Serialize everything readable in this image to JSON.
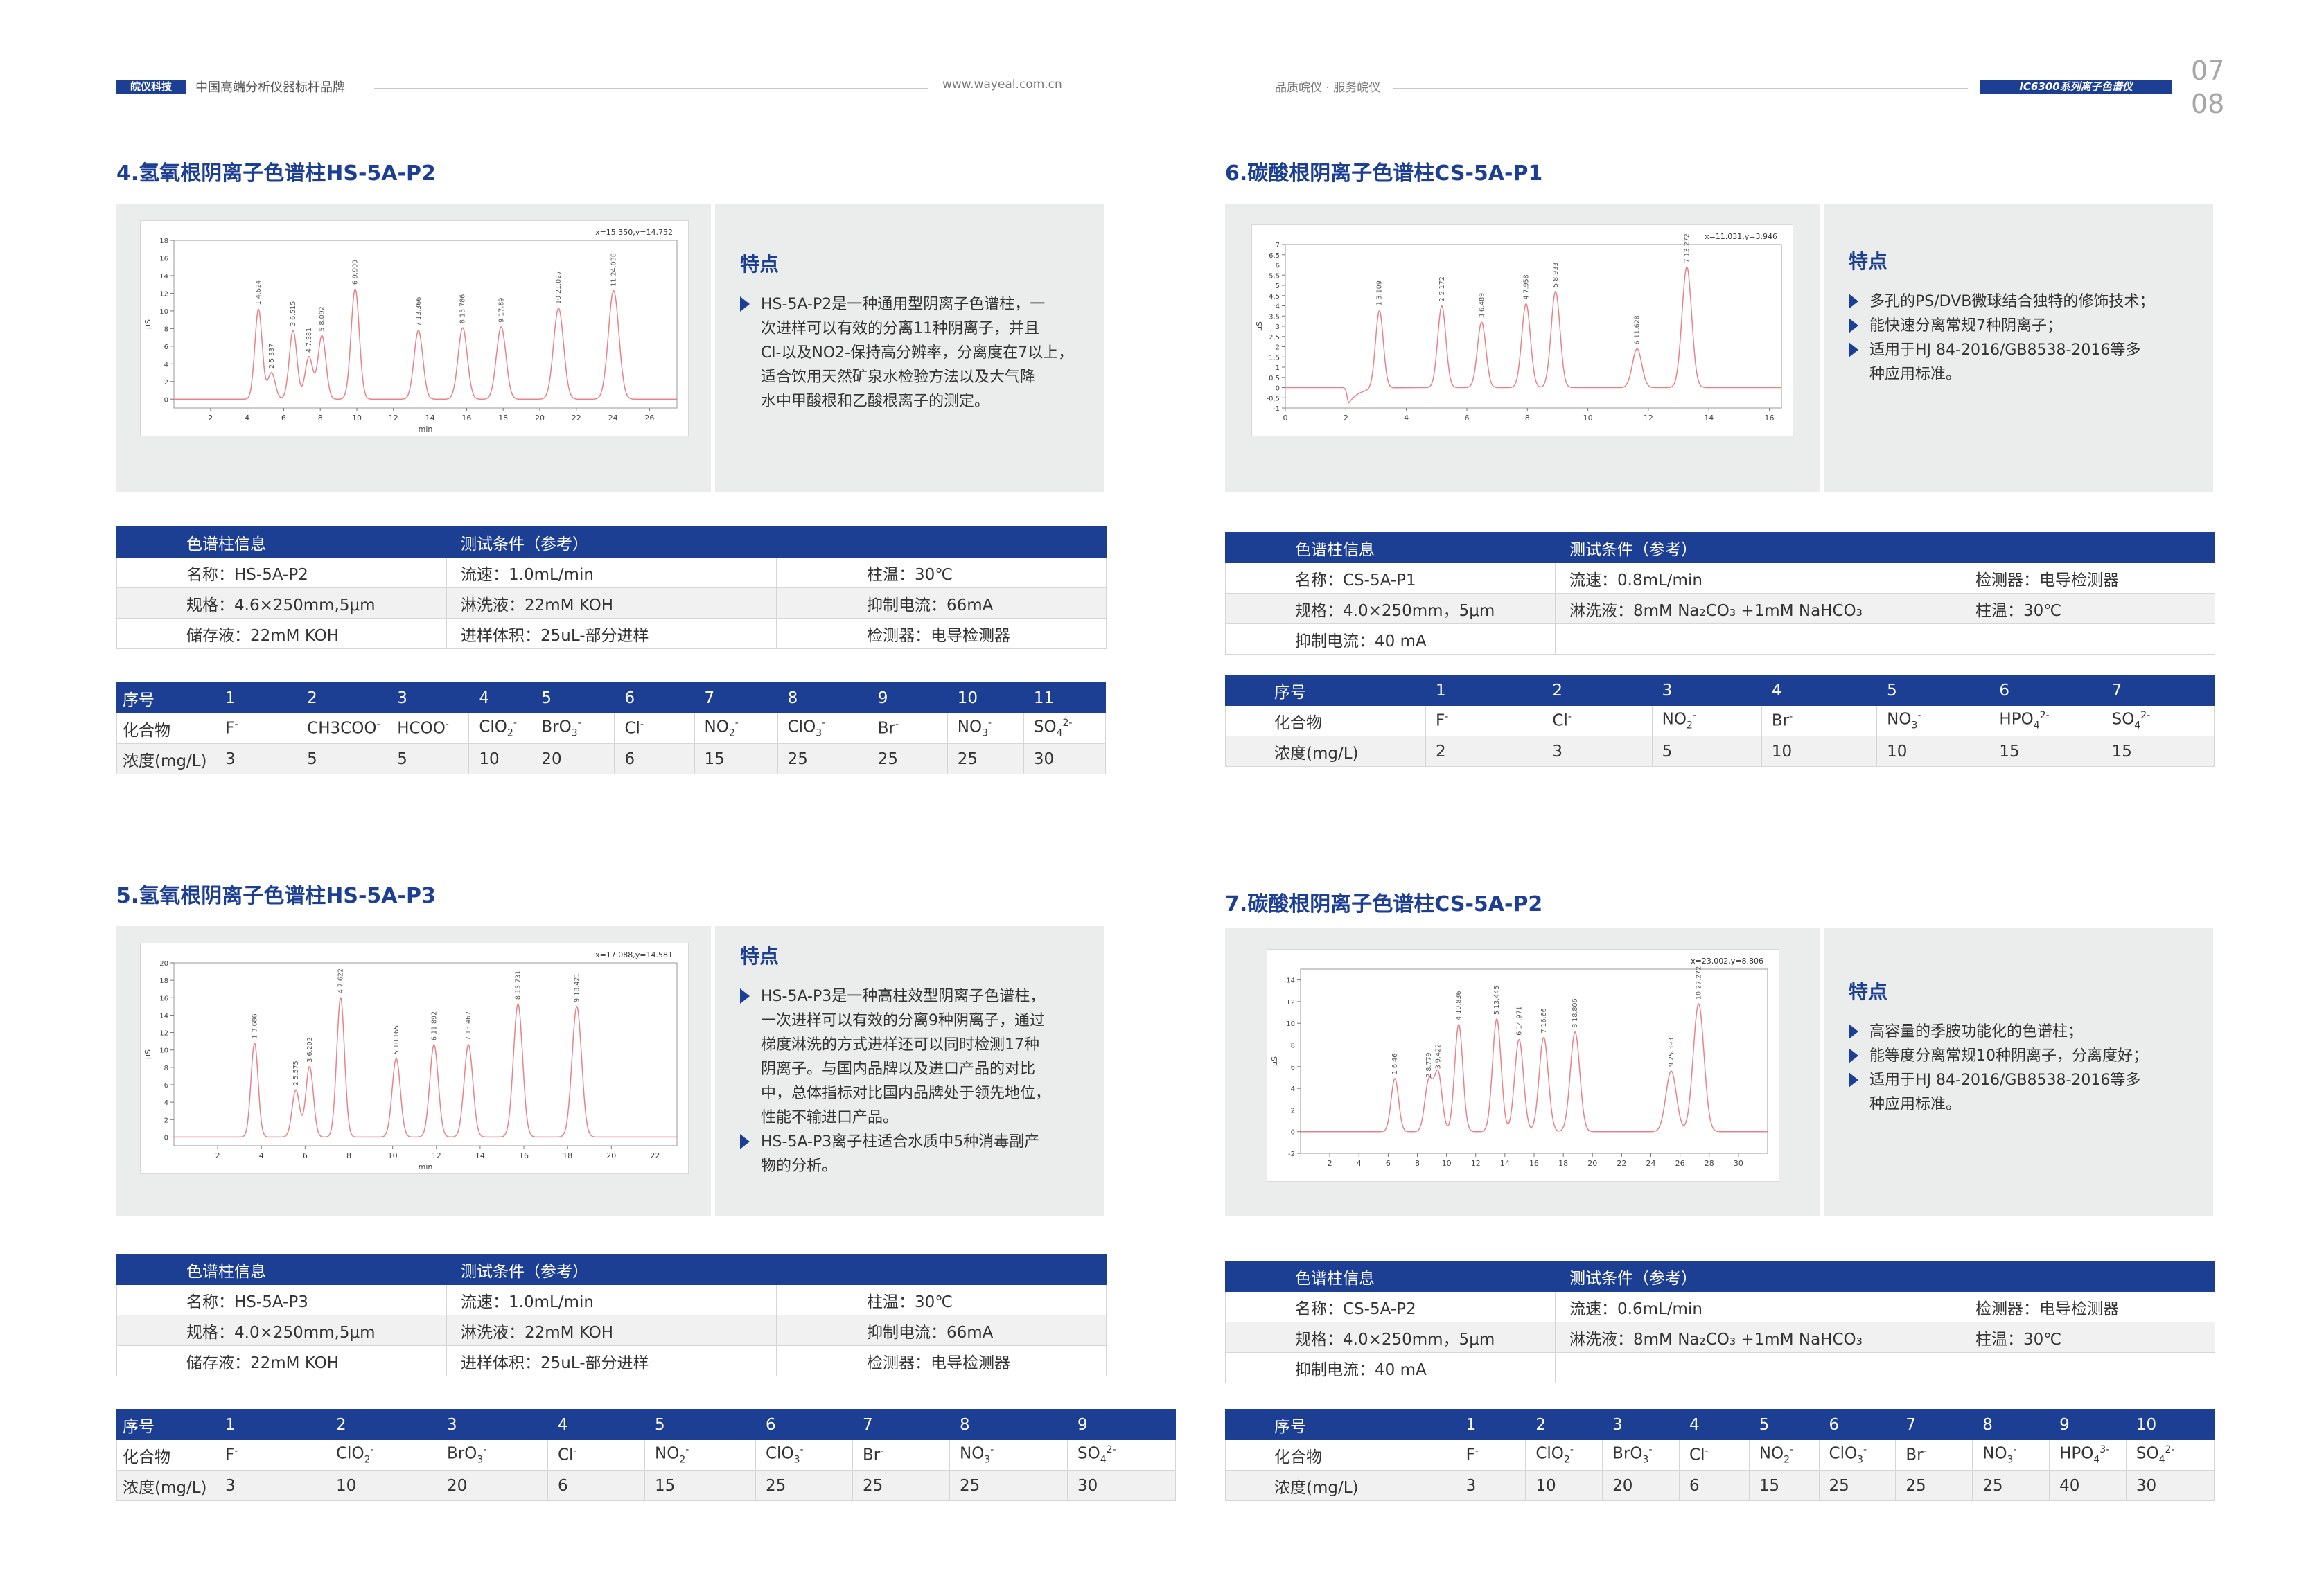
{
  "header": {
    "brand_badge": "皖仪科技",
    "slogan": "中国高端分析仪器标杆品牌",
    "url": "www.wayeal.com.cn",
    "right_slogan": "品质皖仪 · 服务皖仪",
    "series_badge": "IC6300系列离子色谱仪",
    "page_left": "07",
    "page_right": "08"
  },
  "colors": {
    "accent": "#1c3f94",
    "panel": "#ebecec",
    "trace": "#e8838a"
  },
  "sections": [
    {
      "title": "4.氢氧根阴离子色谱柱HS-5A-P2",
      "feature_heading": "特点",
      "features": [
        "HS-5A-P2是一种通用型阴离子色谱柱，一\n次进样可以有效的分离11种阴离子，并且\nCl-以及NO2-保持高分辨率，分离度在7以上，\n适合饮用天然矿泉水检验方法以及大气降\n水中甲酸根和乙酸根离子的测定。"
      ],
      "info_headers": [
        "色谱柱信息",
        "测试条件（参考）"
      ],
      "info_rows": [
        [
          "名称：HS-5A-P2",
          "流速：1.0mL/min",
          "柱温：30℃"
        ],
        [
          "规格：4.6×250mm,5μm",
          "淋洗液：22mM KOH",
          "抑制电流：66mA"
        ],
        [
          "储存液：22mM KOH",
          "进样体积：25uL-部分进样",
          "检测器：电导检测器"
        ]
      ],
      "compound_labels": [
        "序号",
        "化合物",
        "浓度(mg/L)"
      ],
      "compounds": [
        {
          "n": "1",
          "name": "F",
          "sup": "-",
          "sub": "",
          "conc": "3"
        },
        {
          "n": "2",
          "name": "CH3COO",
          "sup": "-",
          "sub": "",
          "conc": "5"
        },
        {
          "n": "3",
          "name": "HCOO",
          "sup": "-",
          "sub": "",
          "conc": "5"
        },
        {
          "n": "4",
          "name": "ClO",
          "sub": "2",
          "sup": "-",
          "conc": "10"
        },
        {
          "n": "5",
          "name": "BrO",
          "sub": "3",
          "sup": "-",
          "conc": "20"
        },
        {
          "n": "6",
          "name": "Cl",
          "sup": "-",
          "sub": "",
          "conc": "6"
        },
        {
          "n": "7",
          "name": "NO",
          "sub": "2",
          "sup": "-",
          "conc": "15"
        },
        {
          "n": "8",
          "name": "ClO",
          "sub": "3",
          "sup": "-",
          "conc": "25"
        },
        {
          "n": "9",
          "name": "Br",
          "sup": "-",
          "sub": "",
          "conc": "25"
        },
        {
          "n": "10",
          "name": "NO",
          "sub": "3",
          "sup": "-",
          "conc": "25"
        },
        {
          "n": "11",
          "name": "SO",
          "sub": "4",
          "sup": "2-",
          "conc": "30"
        }
      ]
    },
    {
      "title": "5.氢氧根阴离子色谱柱HS-5A-P3",
      "feature_heading": "特点",
      "features": [
        "HS-5A-P3是一种高柱效型阴离子色谱柱，\n一次进样可以有效的分离9种阴离子，通过\n梯度淋洗的方式进样还可以同时检测17种\n阴离子。与国内品牌以及进口产品的对比\n中，总体指标对比国内品牌处于领先地位，\n性能不输进口产品。",
        "HS-5A-P3离子柱适合水质中5种消毒副产\n物的分析。"
      ],
      "info_headers": [
        "色谱柱信息",
        "测试条件（参考）"
      ],
      "info_rows": [
        [
          "名称：HS-5A-P3",
          "流速：1.0mL/min",
          "柱温：30℃"
        ],
        [
          "规格：4.0×250mm,5μm",
          "淋洗液：22mM KOH",
          "抑制电流：66mA"
        ],
        [
          "储存液：22mM KOH",
          "进样体积：25uL-部分进样",
          "检测器：电导检测器"
        ]
      ],
      "compound_labels": [
        "序号",
        "化合物",
        "浓度(mg/L)"
      ],
      "compounds": [
        {
          "n": "1",
          "name": "F",
          "sup": "-",
          "sub": "",
          "conc": "3"
        },
        {
          "n": "2",
          "name": "ClO",
          "sub": "2",
          "sup": "-",
          "conc": "10"
        },
        {
          "n": "3",
          "name": "BrO",
          "sub": "3",
          "sup": "-",
          "conc": "20"
        },
        {
          "n": "4",
          "name": "Cl",
          "sup": "-",
          "sub": "",
          "conc": "6"
        },
        {
          "n": "5",
          "name": "NO",
          "sub": "2",
          "sup": "-",
          "conc": "15"
        },
        {
          "n": "6",
          "name": "ClO",
          "sub": "3",
          "sup": "-",
          "conc": "25"
        },
        {
          "n": "7",
          "name": "Br",
          "sup": "-",
          "sub": "",
          "conc": "25"
        },
        {
          "n": "8",
          "name": "NO",
          "sub": "3",
          "sup": "-",
          "conc": "25"
        },
        {
          "n": "9",
          "name": "SO",
          "sub": "4",
          "sup": "2-",
          "conc": "30"
        }
      ]
    },
    {
      "title": "6.碳酸根阴离子色谱柱CS-5A-P1",
      "feature_heading": "特点",
      "features": [
        "多孔的PS/DVB微球结合独特的修饰技术；",
        "能快速分离常规7种阴离子；",
        "适用于HJ 84-2016/GB8538-2016等多\n种应用标准。"
      ],
      "info_headers": [
        "色谱柱信息",
        "测试条件（参考）"
      ],
      "info_rows": [
        [
          "名称：CS-5A-P1",
          "流速：0.8mL/min",
          "检测器：电导检测器"
        ],
        [
          "规格：4.0×250mm，5μm",
          "淋洗液：8mM Na₂CO₃ +1mM NaHCO₃",
          "柱温：30℃"
        ],
        [
          "抑制电流：40 mA",
          "",
          ""
        ]
      ],
      "compound_labels": [
        "序号",
        "化合物",
        "浓度(mg/L)"
      ],
      "compounds": [
        {
          "n": "1",
          "name": "F",
          "sup": "-",
          "sub": "",
          "conc": "2"
        },
        {
          "n": "2",
          "name": "Cl",
          "sup": "-",
          "sub": "",
          "conc": "3"
        },
        {
          "n": "3",
          "name": "NO",
          "sub": "2",
          "sup": "-",
          "conc": "5"
        },
        {
          "n": "4",
          "name": "Br",
          "sup": "-",
          "sub": "",
          "conc": "10"
        },
        {
          "n": "5",
          "name": "NO",
          "sub": "3",
          "sup": "-",
          "conc": "10"
        },
        {
          "n": "6",
          "name": "HPO",
          "sub": "4",
          "sup": "2-",
          "conc": "15"
        },
        {
          "n": "7",
          "name": "SO",
          "sub": "4",
          "sup": "2-",
          "conc": "15"
        }
      ]
    },
    {
      "title": "7.碳酸根阴离子色谱柱CS-5A-P2",
      "feature_heading": "特点",
      "features": [
        "高容量的季胺功能化的色谱柱；",
        "能等度分离常规10种阴离子，分离度好；",
        "适用于HJ 84-2016/GB8538-2016等多\n种应用标准。"
      ],
      "info_headers": [
        "色谱柱信息",
        "测试条件（参考）"
      ],
      "info_rows": [
        [
          "名称：CS-5A-P2",
          "流速：0.6mL/min",
          "检测器：电导检测器"
        ],
        [
          "规格：4.0×250mm，5μm",
          "淋洗液：8mM Na₂CO₃ +1mM NaHCO₃",
          "柱温：30℃"
        ],
        [
          "抑制电流：40 mA",
          "",
          ""
        ]
      ],
      "compound_labels": [
        "序号",
        "化合物",
        "浓度(mg/L)"
      ],
      "compounds": [
        {
          "n": "1",
          "name": "F",
          "sup": "-",
          "sub": "",
          "conc": "3"
        },
        {
          "n": "2",
          "name": "ClO",
          "sub": "2",
          "sup": "-",
          "conc": "10"
        },
        {
          "n": "3",
          "name": "BrO",
          "sub": "3",
          "sup": "-",
          "conc": "20"
        },
        {
          "n": "4",
          "name": "Cl",
          "sup": "-",
          "sub": "",
          "conc": "6"
        },
        {
          "n": "5",
          "name": "NO",
          "sub": "2",
          "sup": "-",
          "conc": "15"
        },
        {
          "n": "6",
          "name": "ClO",
          "sub": "3",
          "sup": "-",
          "conc": "25"
        },
        {
          "n": "7",
          "name": "Br",
          "sup": "-",
          "sub": "",
          "conc": "25"
        },
        {
          "n": "8",
          "name": "NO",
          "sub": "3",
          "sup": "-",
          "conc": "25"
        },
        {
          "n": "9",
          "name": "HPO",
          "sub": "4",
          "sup": "3-",
          "conc": "40"
        },
        {
          "n": "10",
          "name": "SO",
          "sub": "4",
          "sup": "2-",
          "conc": "30"
        }
      ]
    }
  ],
  "chart_data": [
    {
      "type": "line",
      "title": "",
      "readout": "x=15.350,y=14.752",
      "xlabel": "min",
      "ylabel": "μS",
      "xlim": [
        0,
        27.5
      ],
      "ylim": [
        -1,
        18
      ],
      "xticks": [
        2,
        4,
        6,
        8,
        10,
        12,
        14,
        16,
        18,
        20,
        22,
        24,
        26
      ],
      "yticks": [
        0,
        2,
        4,
        6,
        8,
        10,
        12,
        14,
        16,
        18
      ],
      "baseline": 0,
      "peak_width": 0.18,
      "peaks": [
        {
          "x": 4.624,
          "y": 10.2,
          "label": "1  4.624"
        },
        {
          "x": 5.337,
          "y": 3.0,
          "label": "2  5.337"
        },
        {
          "x": 6.515,
          "y": 7.8,
          "label": "3  6.515"
        },
        {
          "x": 7.381,
          "y": 4.8,
          "label": "4  7.381"
        },
        {
          "x": 8.092,
          "y": 7.2,
          "label": "5  8.092"
        },
        {
          "x": 9.909,
          "y": 12.5,
          "label": "6  9.909"
        },
        {
          "x": 13.366,
          "y": 7.8,
          "label": "7  13.366"
        },
        {
          "x": 15.786,
          "y": 8.1,
          "label": "8  15.786"
        },
        {
          "x": 17.89,
          "y": 8.2,
          "label": "9  17.89"
        },
        {
          "x": 21.027,
          "y": 10.3,
          "label": "10  21.027"
        },
        {
          "x": 24.038,
          "y": 12.3,
          "label": "11  24.038"
        }
      ]
    },
    {
      "type": "line",
      "title": "",
      "readout": "x=17.088,y=14.581",
      "xlabel": "min",
      "ylabel": "μS",
      "xlim": [
        0,
        23
      ],
      "ylim": [
        -1,
        20
      ],
      "xticks": [
        2,
        4,
        6,
        8,
        10,
        12,
        14,
        16,
        18,
        20,
        22
      ],
      "yticks": [
        0,
        2,
        4,
        6,
        8,
        10,
        12,
        14,
        16,
        18,
        20
      ],
      "baseline": 0,
      "peak_width": 0.15,
      "peaks": [
        {
          "x": 3.686,
          "y": 10.8,
          "label": "1  3.686"
        },
        {
          "x": 5.575,
          "y": 5.4,
          "label": "2  5.575"
        },
        {
          "x": 6.202,
          "y": 8.1,
          "label": "3  6.202"
        },
        {
          "x": 7.622,
          "y": 16.0,
          "label": "4  7.622"
        },
        {
          "x": 10.165,
          "y": 9.0,
          "label": "5  10.165"
        },
        {
          "x": 11.892,
          "y": 10.6,
          "label": "6  11.892"
        },
        {
          "x": 13.467,
          "y": 10.6,
          "label": "7  13.467"
        },
        {
          "x": 15.731,
          "y": 15.3,
          "label": "8  15.731"
        },
        {
          "x": 18.421,
          "y": 15.0,
          "label": "9  18.421"
        }
      ]
    },
    {
      "type": "line",
      "title": "",
      "readout": "x=11.031,y=3.946",
      "xlabel": "",
      "ylabel": "μS",
      "xlim": [
        0,
        16.4
      ],
      "ylim": [
        -1,
        7
      ],
      "xticks": [
        0,
        2,
        4,
        6,
        8,
        10,
        12,
        14,
        16
      ],
      "yticks": [
        -1,
        -0.5,
        0,
        0.5,
        1,
        1.5,
        2,
        2.5,
        3,
        3.5,
        4,
        4.5,
        5,
        5.5,
        6,
        6.5,
        7
      ],
      "baseline": 0,
      "peak_width": 0.12,
      "dip": {
        "x": 2.1,
        "y": -0.75
      },
      "peaks": [
        {
          "x": 3.109,
          "y": 3.8,
          "label": "1  3.109"
        },
        {
          "x": 5.172,
          "y": 4.0,
          "label": "2  5.172"
        },
        {
          "x": 6.489,
          "y": 3.2,
          "label": "3  6.489"
        },
        {
          "x": 7.958,
          "y": 4.1,
          "label": "4  7.958"
        },
        {
          "x": 8.933,
          "y": 4.7,
          "label": "5  8.933"
        },
        {
          "x": 11.628,
          "y": 1.9,
          "label": "6  11.628"
        },
        {
          "x": 13.272,
          "y": 5.9,
          "label": "7  13.272"
        }
      ]
    },
    {
      "type": "line",
      "title": "",
      "readout": "x=23.002,y=8.806",
      "xlabel": "",
      "ylabel": "μS",
      "xlim": [
        0,
        32
      ],
      "ylim": [
        -2,
        15
      ],
      "xticks": [
        2,
        4,
        6,
        8,
        10,
        12,
        14,
        16,
        18,
        20,
        22,
        24,
        26,
        28,
        30
      ],
      "yticks": [
        -2,
        0,
        2,
        4,
        6,
        8,
        10,
        12,
        14
      ],
      "baseline": 0,
      "peak_width": 0.22,
      "peaks": [
        {
          "x": 6.46,
          "y": 4.9,
          "label": "1  6.46"
        },
        {
          "x": 8.779,
          "y": 4.6,
          "label": "2  8.779"
        },
        {
          "x": 9.422,
          "y": 5.4,
          "label": "3  9.422"
        },
        {
          "x": 10.836,
          "y": 9.9,
          "label": "4  10.836"
        },
        {
          "x": 13.445,
          "y": 10.4,
          "label": "5  13.445"
        },
        {
          "x": 14.971,
          "y": 8.5,
          "label": "6  14.971"
        },
        {
          "x": 16.66,
          "y": 8.7,
          "label": "7  16.66"
        },
        {
          "x": 18.806,
          "y": 9.2,
          "label": "8  18.806"
        },
        {
          "x": 25.393,
          "y": 5.6,
          "label": "9  25.393"
        },
        {
          "x": 27.272,
          "y": 11.8,
          "label": "10  27.272"
        }
      ]
    }
  ]
}
